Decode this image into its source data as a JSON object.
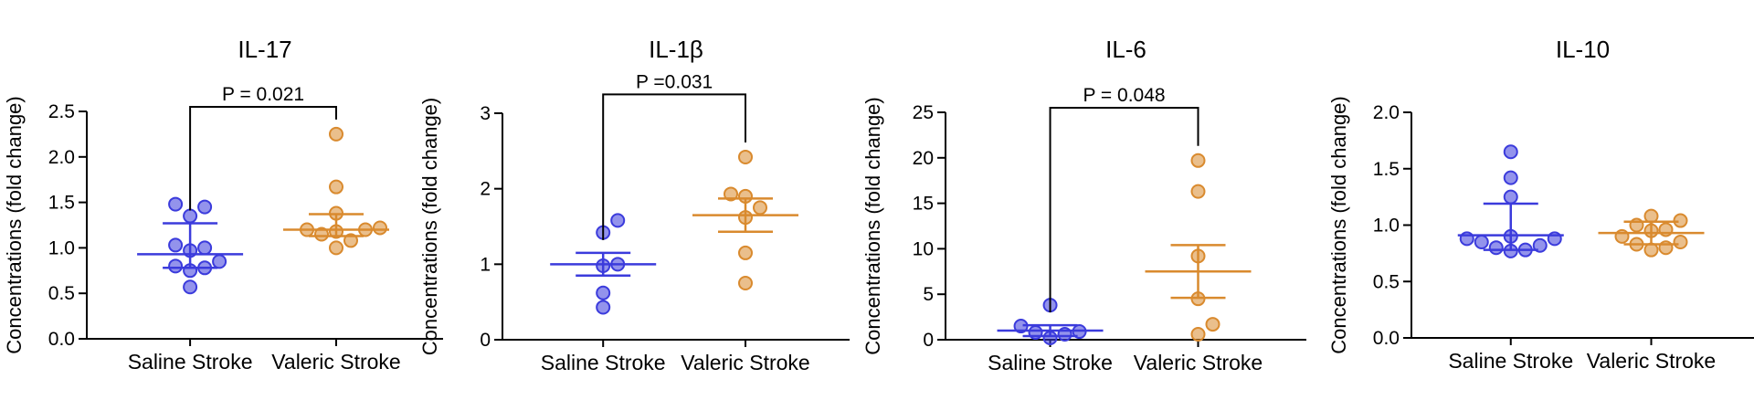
{
  "chart_data": [
    {
      "type": "scatter",
      "title": "IL-17",
      "ylabel": "Concentrations (fold change)",
      "xlabel": "",
      "categories": [
        "Saline Stroke",
        "Valeric Stroke"
      ],
      "ylim": [
        0,
        2.5
      ],
      "yticks": [
        "0.0",
        "0.5",
        "1.0",
        "1.5",
        "2.0",
        "2.5"
      ],
      "series": [
        {
          "color": "#3b3bdc",
          "values": [
            0.57,
            0.75,
            0.78,
            0.8,
            0.85,
            0.97,
            1.0,
            1.03,
            1.35,
            1.45,
            1.48
          ],
          "mean": 0.93,
          "err": [
            0.78,
            1.27
          ]
        },
        {
          "color": "#d98a2e",
          "values": [
            1.0,
            1.08,
            1.15,
            1.18,
            1.2,
            1.2,
            1.22,
            1.38,
            1.67,
            2.25
          ],
          "mean": 1.2,
          "err": [
            1.13,
            1.37
          ]
        }
      ],
      "comparison": {
        "label": "P = 0.021",
        "y": 2.55
      }
    },
    {
      "type": "scatter",
      "title": "IL-1β",
      "ylabel": "Concentrations (fold change)",
      "xlabel": "",
      "categories": [
        "Saline Stroke",
        "Valeric Stroke"
      ],
      "ylim": [
        0,
        3
      ],
      "yticks": [
        "0",
        "1",
        "2",
        "3"
      ],
      "series": [
        {
          "color": "#3b3bdc",
          "values": [
            0.43,
            0.62,
            0.98,
            1.0,
            1.42,
            1.58
          ],
          "mean": 1.0,
          "err": [
            0.85,
            1.15
          ]
        },
        {
          "color": "#d98a2e",
          "values": [
            0.75,
            1.15,
            1.62,
            1.75,
            1.9,
            1.93,
            2.42
          ],
          "mean": 1.65,
          "err": [
            1.43,
            1.87
          ]
        }
      ],
      "comparison": {
        "label": "P =0.031",
        "y": 3.25
      }
    },
    {
      "type": "scatter",
      "title": "IL-6",
      "ylabel": "Concentrations (fold change)",
      "xlabel": "",
      "categories": [
        "Saline Stroke",
        "Valeric Stroke"
      ],
      "ylim": [
        0,
        25
      ],
      "yticks": [
        "0",
        "5",
        "10",
        "15",
        "20",
        "25"
      ],
      "series": [
        {
          "color": "#3b3bdc",
          "values": [
            0.2,
            0.6,
            0.8,
            0.9,
            1.5,
            3.8
          ],
          "mean": 1.0,
          "err": [
            0.4,
            1.6
          ]
        },
        {
          "color": "#d98a2e",
          "values": [
            0.6,
            1.7,
            4.5,
            9.2,
            16.3,
            19.7
          ],
          "mean": 7.5,
          "err": [
            4.6,
            10.4
          ]
        }
      ],
      "comparison": {
        "label": "P = 0.048",
        "y": 25.5
      }
    },
    {
      "type": "scatter",
      "title": "IL-10",
      "ylabel": "Concentrations (fold change)",
      "xlabel": "",
      "categories": [
        "Saline Stroke",
        "Valeric Stroke"
      ],
      "ylim": [
        0,
        2
      ],
      "yticks": [
        "0.0",
        "0.5",
        "1.0",
        "1.5",
        "2.0"
      ],
      "series": [
        {
          "color": "#3b3bdc",
          "values": [
            0.77,
            0.78,
            0.8,
            0.82,
            0.85,
            0.88,
            0.88,
            0.9,
            1.25,
            1.42,
            1.65
          ],
          "mean": 0.91,
          "err": [
            0.78,
            1.19
          ]
        },
        {
          "color": "#d98a2e",
          "values": [
            0.78,
            0.8,
            0.83,
            0.85,
            0.9,
            0.95,
            0.96,
            1.0,
            1.04,
            1.08
          ],
          "mean": 0.93,
          "err": [
            0.83,
            1.03
          ]
        }
      ],
      "comparison": null
    }
  ]
}
